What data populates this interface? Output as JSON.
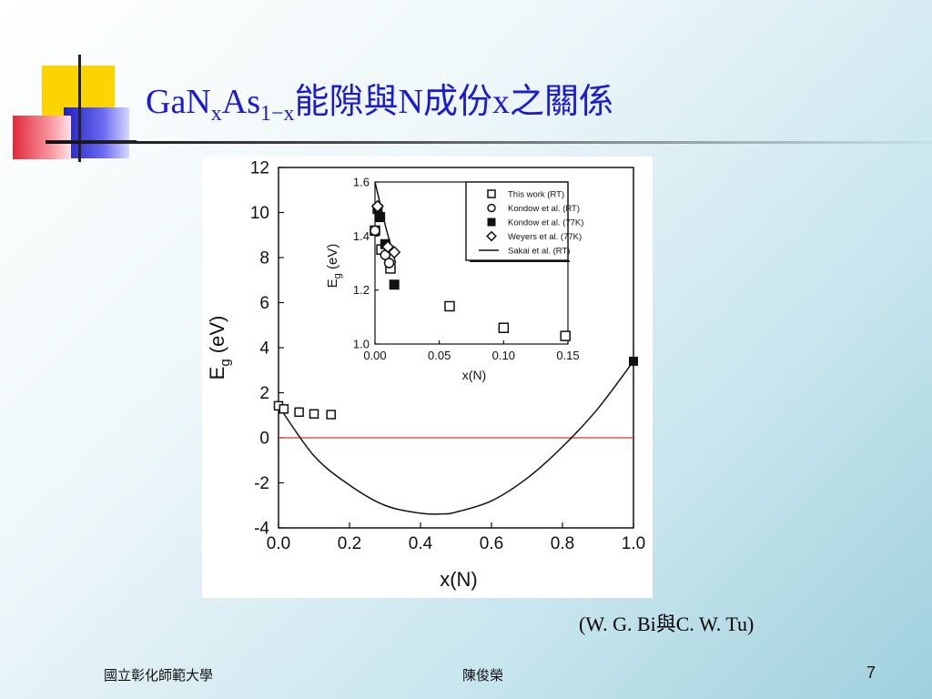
{
  "slide": {
    "title": {
      "main1": "GaN",
      "sub1": "x",
      "main2": "As",
      "sub2": "1−x",
      "main3": "能隙與N成份x之關係"
    },
    "citation": "(W. G. Bi與C. W. Tu)",
    "footer_left": "國立彰化師範大學",
    "footer_center": "陳俊榮",
    "page_number": "7"
  },
  "chart_data": [
    {
      "type": "scatter",
      "xlabel": "x(N)",
      "ylabel": "Eg (eV)",
      "ylabel_main": "E",
      "ylabel_sub": "g",
      "ylabel_unit": " (eV)",
      "xlim": [
        0.0,
        1.0
      ],
      "ylim": [
        -4,
        12
      ],
      "x_ticks": [
        "0.0",
        "0.2",
        "0.4",
        "0.6",
        "0.8",
        "1.0"
      ],
      "y_ticks": [
        "12",
        "10",
        "8",
        "6",
        "4",
        "2",
        "0",
        "-2",
        "-4"
      ],
      "reference_line_y": 0,
      "reference_line_color": "#e03030",
      "series": [
        {
          "marker": "open-square",
          "x": [
            0.0,
            0.015,
            0.058,
            0.1,
            0.148
          ],
          "y": [
            1.42,
            1.28,
            1.14,
            1.06,
            1.03
          ]
        },
        {
          "marker": "filled-square",
          "x": [
            1.0
          ],
          "y": [
            3.4
          ]
        },
        {
          "marker": "line",
          "x": [
            0.0,
            0.1,
            0.2,
            0.3,
            0.4,
            0.46,
            0.5,
            0.6,
            0.7,
            0.8,
            0.9,
            1.0
          ],
          "y": [
            1.42,
            -0.8,
            -2.1,
            -3.0,
            -3.35,
            -3.38,
            -3.3,
            -2.8,
            -1.8,
            -0.4,
            1.3,
            3.4
          ]
        }
      ]
    },
    {
      "type": "scatter",
      "xlabel": "x(N)",
      "ylabel": "Eg (eV)",
      "ylabel_main": "E",
      "ylabel_sub": "g",
      "ylabel_unit": " (eV)",
      "xlim": [
        0.0,
        0.15
      ],
      "ylim": [
        1.0,
        1.6
      ],
      "x_ticks": [
        "0.00",
        "0.05",
        "0.10",
        "0.15"
      ],
      "y_ticks": [
        "1.6",
        "1.4",
        "1.2",
        "1.0"
      ],
      "legend_position": "top-right",
      "series": [
        {
          "name": "This work (RT)",
          "marker": "open-square",
          "x": [
            0.0,
            0.005,
            0.012,
            0.058,
            0.1,
            0.148
          ],
          "y": [
            1.42,
            1.35,
            1.28,
            1.14,
            1.06,
            1.03
          ]
        },
        {
          "name": "Kondow et al. (RT)",
          "marker": "open-circle",
          "x": [
            0.0,
            0.008,
            0.011
          ],
          "y": [
            1.42,
            1.33,
            1.3
          ]
        },
        {
          "name": "Kondow et al. (77K)",
          "marker": "filled-square",
          "x": [
            0.002,
            0.004,
            0.008,
            0.015
          ],
          "y": [
            1.5,
            1.47,
            1.37,
            1.22
          ]
        },
        {
          "name": "Weyers et al. (77K)",
          "marker": "open-diamond",
          "x": [
            0.002,
            0.01,
            0.015
          ],
          "y": [
            1.51,
            1.36,
            1.34
          ]
        },
        {
          "name": "Sakai et al. (RT)",
          "marker": "line",
          "x": [
            0.0,
            0.004,
            0.008,
            0.012,
            0.016
          ],
          "y": [
            1.6,
            1.52,
            1.44,
            1.37,
            1.3
          ]
        }
      ]
    }
  ]
}
